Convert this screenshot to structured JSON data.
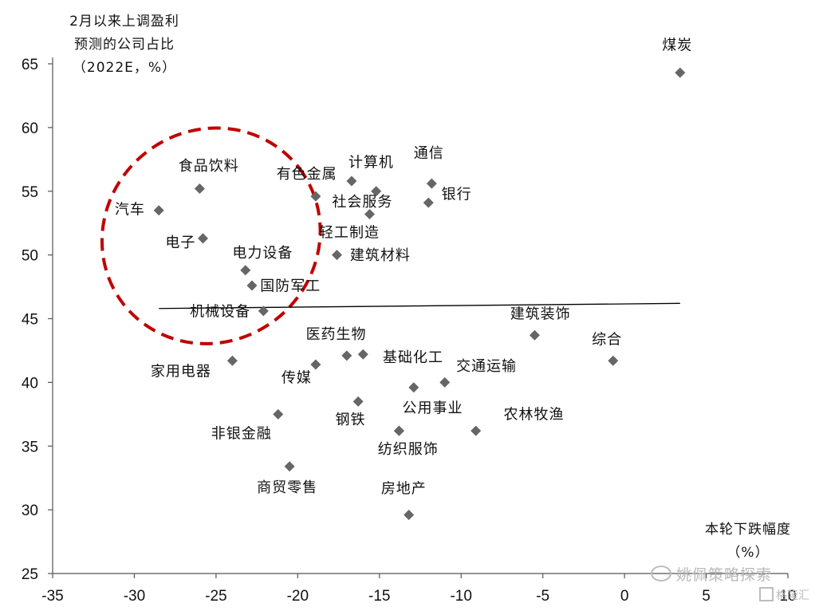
{
  "chart_data": {
    "type": "scatter",
    "title_lines": [
      "2月以来上调盈利",
      "预测的公司占比",
      "（2022E，%）"
    ],
    "xlabel_lines": [
      "本轮下跌幅度",
      "（%）"
    ],
    "xlim": [
      -35,
      10
    ],
    "ylim": [
      25,
      65
    ],
    "xticks": [
      -35,
      -30,
      -25,
      -20,
      -15,
      -10,
      -5,
      0,
      5,
      10
    ],
    "yticks": [
      25,
      30,
      35,
      40,
      45,
      50,
      55,
      60,
      65
    ],
    "marker_color": "#666666",
    "points": [
      {
        "label": "煤炭",
        "x": 3.4,
        "y": 64.3
      },
      {
        "label": "食品饮料",
        "x": -26.0,
        "y": 55.2
      },
      {
        "label": "汽车",
        "x": -28.5,
        "y": 53.5
      },
      {
        "label": "电子",
        "x": -25.8,
        "y": 51.3
      },
      {
        "label": "电力设备",
        "x": -23.2,
        "y": 48.8
      },
      {
        "label": "国防军工",
        "x": -22.8,
        "y": 47.6
      },
      {
        "label": "机械设备",
        "x": -22.1,
        "y": 45.6
      },
      {
        "label": "有色金属",
        "x": -18.9,
        "y": 54.6
      },
      {
        "label": "计算机",
        "x": -16.7,
        "y": 55.8
      },
      {
        "label": "社会服务",
        "x": -15.2,
        "y": 55.0
      },
      {
        "label": "通信",
        "x": -11.8,
        "y": 55.6
      },
      {
        "label": "银行",
        "x": -12.0,
        "y": 54.1
      },
      {
        "label": "轻工制造",
        "x": -15.6,
        "y": 53.2
      },
      {
        "label": "建筑材料",
        "x": -17.6,
        "y": 50.0
      },
      {
        "label": "建筑装饰",
        "x": -5.5,
        "y": 43.7
      },
      {
        "label": "综合",
        "x": -0.7,
        "y": 41.7
      },
      {
        "label": "医药生物",
        "x": -16.0,
        "y": 42.2
      },
      {
        "label": "医药生物（2）",
        "x": -17.0,
        "y": 42.1
      },
      {
        "label": "家用电器",
        "x": -24.0,
        "y": 41.7
      },
      {
        "label": "传媒",
        "x": -18.9,
        "y": 41.4
      },
      {
        "label": "基础化工",
        "x": -12.9,
        "y": 39.6
      },
      {
        "label": "交通运输",
        "x": -11.0,
        "y": 40.0
      },
      {
        "label": "钢铁",
        "x": -16.3,
        "y": 38.5
      },
      {
        "label": "非银金融",
        "x": -21.2,
        "y": 37.5
      },
      {
        "label": "公用事业",
        "x": -13.8,
        "y": 36.2
      },
      {
        "label": "纺织服饰",
        "x": -13.8,
        "y": 36.2
      },
      {
        "label": "农林牧渔",
        "x": -9.1,
        "y": 36.2
      },
      {
        "label": "商贸零售",
        "x": -20.5,
        "y": 33.4
      },
      {
        "label": "房地产",
        "x": -13.2,
        "y": 29.6
      }
    ],
    "labels": [
      {
        "text": "煤炭",
        "x": 2.3,
        "y": 66.1
      },
      {
        "text": "食品饮料",
        "x": -27.3,
        "y": 56.6
      },
      {
        "text": "汽车",
        "x": -31.2,
        "y": 53.2
      },
      {
        "text": "电子",
        "x": -28.1,
        "y": 50.6
      },
      {
        "text": "电力设备",
        "x": -24.0,
        "y": 49.8
      },
      {
        "text": "国防军工",
        "x": -22.3,
        "y": 47.2
      },
      {
        "text": "机械设备",
        "x": -26.6,
        "y": 45.2
      },
      {
        "text": "有色金属",
        "x": -21.3,
        "y": 56.0
      },
      {
        "text": "计算机",
        "x": -16.9,
        "y": 56.9
      },
      {
        "text": "社会服务",
        "x": -17.9,
        "y": 53.8
      },
      {
        "text": "通信",
        "x": -12.9,
        "y": 57.6
      },
      {
        "text": "银行",
        "x": -11.2,
        "y": 54.4
      },
      {
        "text": "轻工制造",
        "x": -18.7,
        "y": 51.4
      },
      {
        "text": "建筑材料",
        "x": -16.8,
        "y": 49.6
      },
      {
        "text": "建筑装饰",
        "x": -7.0,
        "y": 45.0
      },
      {
        "text": "综合",
        "x": -2.0,
        "y": 43.0
      },
      {
        "text": "医药生物",
        "x": -19.5,
        "y": 43.4
      },
      {
        "text": "家用电器",
        "x": -29.0,
        "y": 40.5
      },
      {
        "text": "传媒",
        "x": -21.0,
        "y": 40.0
      },
      {
        "text": "基础化工",
        "x": -14.8,
        "y": 41.6
      },
      {
        "text": "交通运输",
        "x": -10.3,
        "y": 40.9
      },
      {
        "text": "钢铁",
        "x": -17.7,
        "y": 36.7
      },
      {
        "text": "非银金融",
        "x": -25.3,
        "y": 35.6
      },
      {
        "text": "公用事业",
        "x": -13.6,
        "y": 37.6
      },
      {
        "text": "纺织服饰",
        "x": -15.1,
        "y": 34.4
      },
      {
        "text": "农林牧渔",
        "x": -7.4,
        "y": 37.1
      },
      {
        "text": "商贸零售",
        "x": -22.5,
        "y": 31.4
      },
      {
        "text": "房地产",
        "x": -14.9,
        "y": 31.3
      }
    ],
    "trendline": {
      "x": [
        -28.5,
        3.4
      ],
      "y": [
        45.8,
        46.2
      ]
    },
    "highlight": {
      "shape": "dashed-ellipse",
      "color": "#C00000",
      "center": [
        -25.3,
        51.5
      ],
      "rx": 6.8,
      "ry": 8.3,
      "rotation": -38
    }
  },
  "watermark": {
    "text": "姚佩策略探索"
  },
  "brand": {
    "text": "格隆汇"
  }
}
